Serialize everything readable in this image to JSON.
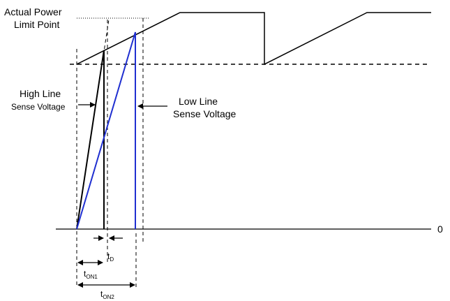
{
  "labels": {
    "actual_power_line1": "Actual Power",
    "actual_power_line2": "Limit Point",
    "high_line_1": "High Line",
    "high_line_2": "Sense Voltage",
    "low_line_1": "Low Line",
    "low_line_2": "Sense Voltage",
    "zero": "0",
    "t_d_main": "t",
    "t_d_sub": "D",
    "t_on1_main": "t",
    "t_on1_sub": "ON1",
    "t_on2_main": "t",
    "t_on2_sub": "ON2"
  },
  "colors": {
    "black": "#000000",
    "blue": "#1f2fd0"
  }
}
